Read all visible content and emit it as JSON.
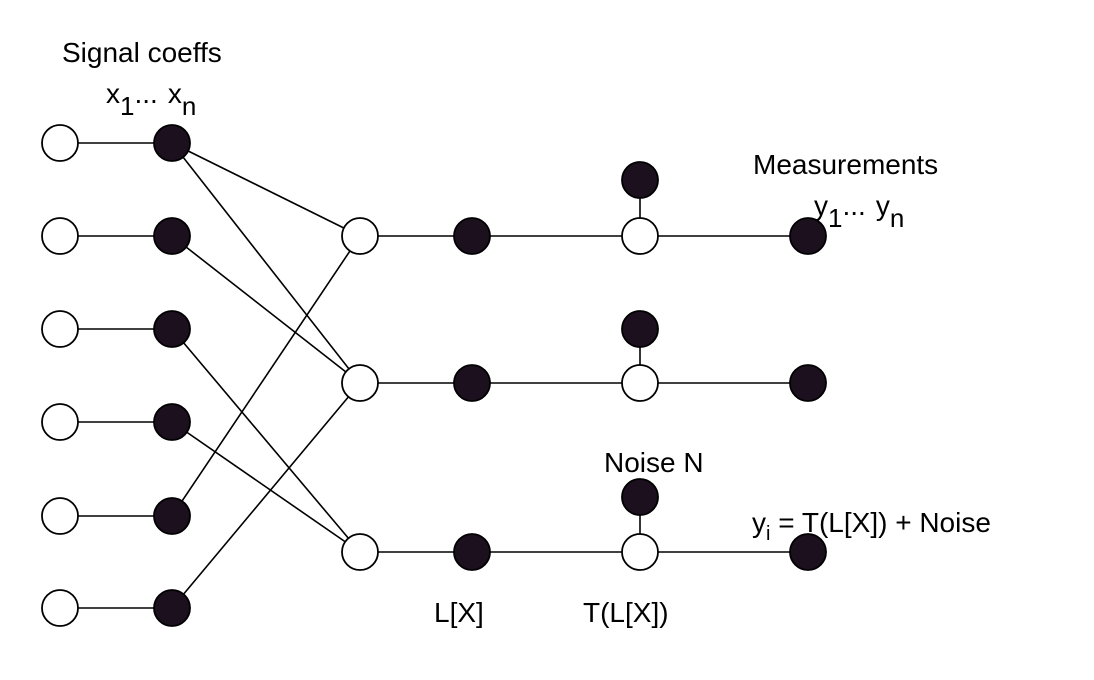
{
  "colors": {
    "filled_node": "#1c0f1e",
    "open_node": "#ffffff",
    "line": "#000000",
    "background": "#ffffff"
  },
  "labels": {
    "signal_title": "Signal coeffs",
    "signal_x1": "x",
    "signal_x1_sub": "1",
    "signal_dots": "...",
    "signal_xn": "x",
    "signal_xn_sub": "n",
    "measure_title": "Measurements",
    "measure_y1": "y",
    "measure_y1_sub": "1",
    "measure_dots": "...",
    "measure_yn": "y",
    "measure_yn_sub": "n",
    "noise": "Noise N",
    "formula_y": "y",
    "formula_sub": "i",
    "formula_rest": " = T(L[X]) + Noise",
    "linear": "L[X]",
    "transform": "T(L[X])"
  }
}
